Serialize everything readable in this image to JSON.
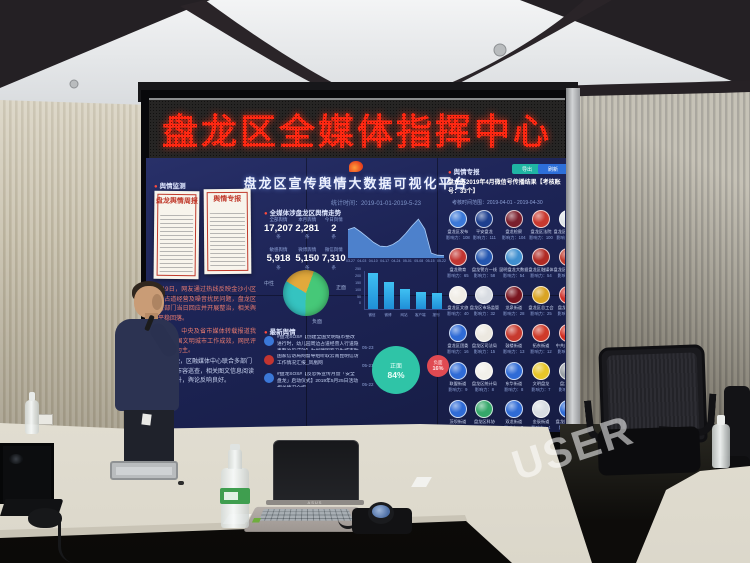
{
  "scene": {
    "watermark": "USER"
  },
  "marquee": {
    "text": "盘龙区全媒体指挥中心"
  },
  "dashboard": {
    "title": "盘龙区宣传舆情大数据可视化平台",
    "time_range": "统计时间：2019-01-01-2019-5-23",
    "left": {
      "header": "舆情监测",
      "doc1_title": "盘龙舆情周报",
      "doc2_title": "舆情专报",
      "para_red_1": "5月19日，网友通过热线反映金沙小区周边占道经营及噪音扰民问题，盘龙区城管部门当日回应并开展整治，相关舆情平稳回落。",
      "para_red_2": "5月21日，中央及省市媒体转载报道我区创建全国文明城市工作成效，网民评论以正面为主。",
      "para_light": "5月22日晚，区融媒体中心联合多部门开展夜间市容巡查，相关图文信息阅读量持续上升，舆论反响良好。"
    },
    "trend": {
      "header": "全媒体涉盘龙区舆情走势",
      "stats": [
        {
          "label": "全部舆情",
          "value": "17,207",
          "unit": "条"
        },
        {
          "label": "本月舆情",
          "value": "2,281",
          "unit": "条"
        },
        {
          "label": "今日舆情",
          "value": "2",
          "unit": "条"
        },
        {
          "label": "敏感舆情",
          "value": "5,918",
          "unit": "条"
        },
        {
          "label": "微博舆情",
          "value": "5,150",
          "unit": "条"
        },
        {
          "label": "微信舆情",
          "value": "7,310",
          "unit": "条"
        }
      ],
      "chart": {
        "type": "area",
        "x_labels": [
          "03-27",
          "04-03",
          "04-10",
          "04-17",
          "04-24",
          "05-01",
          "05-08",
          "05-15",
          "05-22"
        ],
        "values": [
          165,
          178,
          150,
          118,
          85,
          62,
          58,
          72,
          98,
          140,
          188,
          230,
          168,
          18,
          5,
          3
        ],
        "ymax": 250
      }
    },
    "pie": {
      "type": "pie",
      "labels": [
        "正面",
        "中性",
        "负面"
      ],
      "values": [
        45,
        33,
        22
      ],
      "colors": [
        "#46c878",
        "#35c3c0",
        "#e2a93c"
      ]
    },
    "bars": {
      "type": "bar",
      "categories": [
        "微信",
        "微博",
        "网站",
        "客户端",
        "报刊"
      ],
      "values": [
        250,
        185,
        140,
        120,
        110
      ],
      "ticks": [
        250,
        200,
        150,
        100,
        50,
        0
      ],
      "ymax": 250
    },
    "news": {
      "header": "最新舆情",
      "items": [
        {
          "avatar_color": "#3b78d8",
          "text": "#盘龙SOS#【创建全国文明城市整改进行时，幼儿园周边占道经营人行道隐患整治见成效】为创建国家卫生城市助力",
          "date": "05-23"
        },
        {
          "avatar_color": "#c23531",
          "text": "国家信访局网督导组听取云南昆明信访工作情况汇报_凤凰网",
          "date": "05-21"
        },
        {
          "avatar_color": "#3b78d8",
          "text": "#盘龙SOS#【反恐怖宣传月暨「安全盘龙」启动仪式】2019年5月25日活动相关情况介绍",
          "date": "05-22"
        }
      ]
    },
    "sentiment": {
      "positive_label": "正面",
      "positive_pct": "84%",
      "negative_label": "负面",
      "negative_pct": "16%"
    },
    "right": {
      "header": "舆情专报",
      "buttons": [
        {
          "label": "导出",
          "color": "#1fb5a3"
        },
        {
          "label": "刷新",
          "color": "#2d6fd9"
        }
      ],
      "title": "盘龙区2019年4月微信号传播结果【考核账号：33个】",
      "subtitle": "考核时间范围：2019-04-01 - 2019-04-30",
      "influence_prefix": "影响力：",
      "badges": [
        {
          "name": "盘龙区发布",
          "value": 108,
          "color": "#3b78d8"
        },
        {
          "name": "平安盘龙",
          "value": 111,
          "color": "#1d3f8f"
        },
        {
          "name": "盘龙检察",
          "value": 104,
          "color": "#7a1f2d"
        },
        {
          "name": "盘龙区法院",
          "value": 100,
          "color": "#c8392f"
        },
        {
          "name": "盘龙区人民政府",
          "value": 100,
          "color": "#dfe4e8"
        },
        {
          "name": "盘龙教育",
          "value": 65,
          "color": "#c23531"
        },
        {
          "name": "盘龙警方一线",
          "value": 58,
          "color": "#2356b0"
        },
        {
          "name": "昆明盘龙大数据",
          "value": 54,
          "color": "#3f8fd0"
        },
        {
          "name": "盘龙区融媒体",
          "value": 54,
          "color": "#b02a24"
        },
        {
          "name": "盘龙区委政法委",
          "value": 53,
          "color": "#c0392b"
        },
        {
          "name": "盘龙区文旅",
          "value": 40,
          "color": "#f0ede6"
        },
        {
          "name": "盘龙区市场监管",
          "value": 32,
          "color": "#d8dce2"
        },
        {
          "name": "龙泉街道",
          "value": 28,
          "color": "#7a1520"
        },
        {
          "name": "盘龙区总工会",
          "value": 25,
          "color": "#d9a424"
        },
        {
          "name": "盘龙区妇联",
          "value": 22,
          "color": "#d03028"
        },
        {
          "name": "盘龙区团委",
          "value": 16,
          "color": "#2f6bd6"
        },
        {
          "name": "盘龙区司法局",
          "value": 15,
          "color": "#ece8e0"
        },
        {
          "name": "鼓楼街道",
          "value": 13,
          "color": "#c73a2e"
        },
        {
          "name": "拓东街道",
          "value": 12,
          "color": "#cf3b2a"
        },
        {
          "name": "中共盘龙区委",
          "value": 10,
          "color": "#d42f22"
        },
        {
          "name": "联盟街道",
          "value": 9,
          "color": "#2f6bd6"
        },
        {
          "name": "盘龙区统计局",
          "value": 8,
          "color": "#f2f0ea"
        },
        {
          "name": "东华街道",
          "value": 8,
          "color": "#2f6bd6"
        },
        {
          "name": "文明盘龙",
          "value": 7,
          "color": "#e8c629"
        },
        {
          "name": "盘龙交运",
          "value": 6,
          "color": "#9aa0a6"
        },
        {
          "name": "茨坝街道",
          "value": 6,
          "color": "#2f6bd6"
        },
        {
          "name": "盘龙区科协",
          "value": 5,
          "color": "#35a86a"
        },
        {
          "name": "双龙街道",
          "value": 5,
          "color": "#2f6bd6"
        },
        {
          "name": "金辰街道",
          "value": 4,
          "color": "#d8dde2"
        },
        {
          "name": "盘龙区卫健局",
          "value": 4,
          "color": "#2f6bd6"
        }
      ]
    }
  },
  "objects": {
    "asus_label": "ASUS"
  }
}
